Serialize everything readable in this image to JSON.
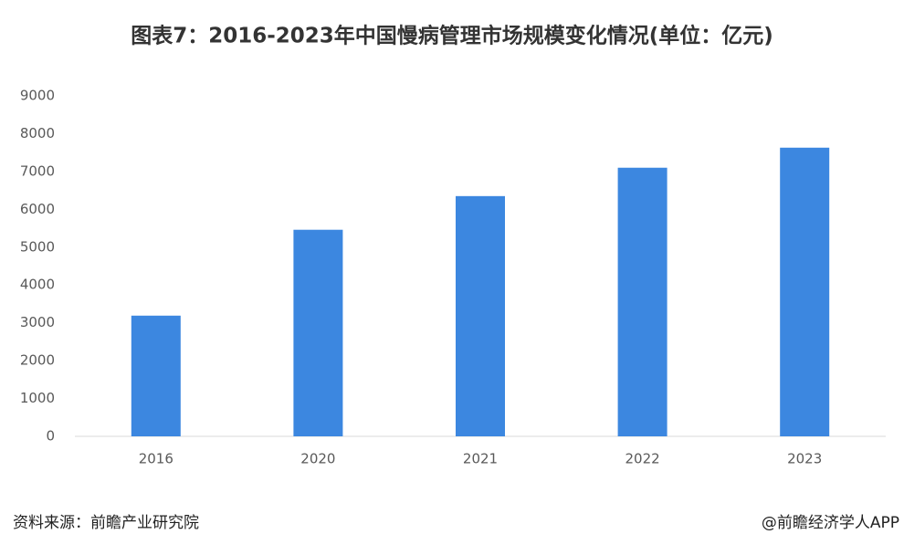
{
  "chart_data": {
    "type": "bar",
    "title": "图表7：2016-2023年中国慢病管理市场规模变化情况(单位：亿元)",
    "categories": [
      "2016",
      "2020",
      "2021",
      "2022",
      "2023"
    ],
    "values": [
      3190,
      5460,
      6350,
      7100,
      7630
    ],
    "color": "#3c87e0",
    "ylim": [
      0,
      9000
    ],
    "yticks": [
      0,
      1000,
      2000,
      3000,
      4000,
      5000,
      6000,
      7000,
      8000,
      9000
    ],
    "grid": false,
    "source": "资料来源：前瞻产业研究院",
    "credit": "@前瞻经济学人APP"
  }
}
